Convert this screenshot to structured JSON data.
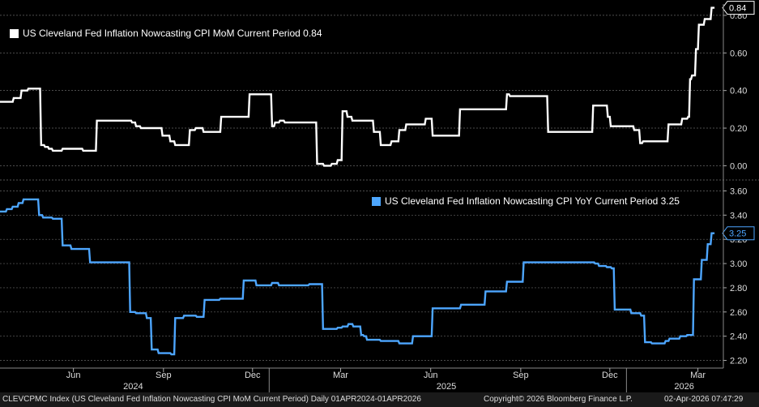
{
  "chart_data": [
    {
      "type": "line",
      "legend": "US Cleveland Fed Inflation Nowcasting CPI MoM Current Period 0.84",
      "current_value": "0.84",
      "color": "#ffffff",
      "ylim": [
        -0.05,
        0.86
      ],
      "yticks": [
        "0.00",
        "0.20",
        "0.40",
        "0.60",
        "0.80"
      ],
      "ytick_values": [
        0.0,
        0.2,
        0.4,
        0.6,
        0.8
      ],
      "grid": true,
      "legend_position": "top-left",
      "series": [
        {
          "x": [
            "2024-04-01",
            "2024-04-14",
            "2024-04-15",
            "2024-04-22",
            "2024-04-23",
            "2024-04-29",
            "2024-04-30",
            "2024-05-12",
            "2024-05-13",
            "2024-05-16",
            "2024-05-17",
            "2024-05-20",
            "2024-05-21",
            "2024-05-24",
            "2024-05-25",
            "2024-06-03",
            "2024-06-04",
            "2024-06-24",
            "2024-06-25",
            "2024-07-08",
            "2024-07-09",
            "2024-07-17",
            "2024-07-18",
            "2024-08-13",
            "2024-08-14",
            "2024-08-17",
            "2024-08-18",
            "2024-08-22",
            "2024-08-23",
            "2024-08-29",
            "2024-08-30",
            "2024-09-13",
            "2024-09-14",
            "2024-09-21",
            "2024-09-22",
            "2024-09-26",
            "2024-09-27",
            "2024-10-04",
            "2024-10-05",
            "2024-10-11",
            "2024-10-12",
            "2024-10-17",
            "2024-10-18",
            "2024-10-25",
            "2024-10-26",
            "2024-11-12",
            "2024-11-13",
            "2024-12-11",
            "2024-12-12",
            "2024-12-18",
            "2024-12-19",
            "2025-01-03",
            "2025-01-04",
            "2025-01-06",
            "2025-01-07",
            "2025-01-11",
            "2025-01-12",
            "2025-01-16",
            "2025-01-17",
            "2025-02-11",
            "2025-02-12",
            "2025-02-18",
            "2025-02-19",
            "2025-02-25",
            "2025-02-26",
            "2025-03-05",
            "2025-03-06",
            "2025-03-11",
            "2025-03-12",
            "2025-03-16",
            "2025-03-17",
            "2025-03-21",
            "2025-03-22",
            "2025-03-26",
            "2025-03-27",
            "2025-04-11",
            "2025-04-12",
            "2025-04-17",
            "2025-04-18",
            "2025-04-24",
            "2025-04-25",
            "2025-05-05",
            "2025-05-06",
            "2025-05-13",
            "2025-05-14",
            "2025-05-20",
            "2025-05-21",
            "2025-06-09",
            "2025-06-10",
            "2025-06-16",
            "2025-06-17",
            "2025-07-14",
            "2025-07-15",
            "2025-08-09",
            "2025-08-10",
            "2025-08-31",
            "2025-09-01",
            "2025-09-03",
            "2025-09-04",
            "2025-10-02",
            "2025-10-03",
            "2025-10-12",
            "2025-10-13",
            "2025-11-12",
            "2025-11-13",
            "2025-11-27",
            "2025-11-28",
            "2025-12-08",
            "2025-12-09",
            "2025-12-12",
            "2025-12-13",
            "2025-12-15",
            "2025-12-16",
            "2026-01-08",
            "2026-01-09",
            "2026-01-14",
            "2026-01-15",
            "2026-01-17",
            "2026-01-18",
            "2026-02-06",
            "2026-02-07",
            "2026-02-12",
            "2026-02-13",
            "2026-02-26",
            "2026-02-27",
            "2026-03-04",
            "2026-03-05",
            "2026-03-06",
            "2026-03-07",
            "2026-03-08",
            "2026-03-09",
            "2026-03-12",
            "2026-03-13",
            "2026-03-15",
            "2026-03-16",
            "2026-03-21",
            "2026-03-22",
            "2026-03-28",
            "2026-03-29",
            "2026-04-01"
          ],
          "values": [
            0.34,
            0.34,
            0.36,
            0.36,
            0.4,
            0.4,
            0.41,
            0.41,
            0.11,
            0.11,
            0.1,
            0.1,
            0.09,
            0.09,
            0.08,
            0.08,
            0.09,
            0.09,
            0.08,
            0.08,
            0.24,
            0.24,
            0.24,
            0.24,
            0.23,
            0.23,
            0.21,
            0.21,
            0.2,
            0.2,
            0.2,
            0.2,
            0.16,
            0.16,
            0.13,
            0.13,
            0.11,
            0.11,
            0.11,
            0.11,
            0.19,
            0.19,
            0.2,
            0.2,
            0.18,
            0.18,
            0.26,
            0.26,
            0.38,
            0.38,
            0.38,
            0.38,
            0.21,
            0.21,
            0.23,
            0.23,
            0.24,
            0.24,
            0.23,
            0.23,
            0.23,
            0.23,
            0.01,
            0.01,
            0.0,
            0.0,
            0.01,
            0.01,
            0.03,
            0.03,
            0.29,
            0.29,
            0.26,
            0.26,
            0.24,
            0.24,
            0.24,
            0.24,
            0.18,
            0.18,
            0.11,
            0.11,
            0.13,
            0.13,
            0.19,
            0.19,
            0.22,
            0.22,
            0.25,
            0.25,
            0.16,
            0.16,
            0.3,
            0.3,
            0.3,
            0.3,
            0.38,
            0.38,
            0.37,
            0.37,
            0.37,
            0.37,
            0.18,
            0.18,
            0.18,
            0.18,
            0.32,
            0.32,
            0.32,
            0.32,
            0.26,
            0.26,
            0.21,
            0.21,
            0.19,
            0.19,
            0.12,
            0.12,
            0.13,
            0.13,
            0.13,
            0.13,
            0.22,
            0.22,
            0.25,
            0.25,
            0.26,
            0.26,
            0.46,
            0.46,
            0.48,
            0.48,
            0.62,
            0.62,
            0.75,
            0.75,
            0.78,
            0.78,
            0.84,
            0.84
          ]
        }
      ]
    },
    {
      "type": "line",
      "legend": "US Cleveland Fed Inflation Nowcasting CPI YoY Current Period 3.25",
      "current_value": "3.25",
      "color": "#4da6ff",
      "ylim": [
        2.15,
        3.65
      ],
      "yticks": [
        "2.20",
        "2.40",
        "2.60",
        "2.80",
        "3.00",
        "3.20",
        "3.40",
        "3.60"
      ],
      "ytick_values": [
        2.2,
        2.4,
        2.6,
        2.8,
        3.0,
        3.2,
        3.4,
        3.6
      ],
      "grid": true,
      "legend_position": "top-right",
      "series": [
        {
          "x": [
            "2024-04-01",
            "2024-04-07",
            "2024-04-08",
            "2024-04-13",
            "2024-04-14",
            "2024-04-19",
            "2024-04-20",
            "2024-04-24",
            "2024-04-25",
            "2024-05-10",
            "2024-05-11",
            "2024-05-14",
            "2024-05-15",
            "2024-05-24",
            "2024-05-25",
            "2024-06-03",
            "2024-06-04",
            "2024-06-12",
            "2024-06-13",
            "2024-07-01",
            "2024-07-02",
            "2024-08-11",
            "2024-08-12",
            "2024-08-17",
            "2024-08-18",
            "2024-08-28",
            "2024-08-29",
            "2024-09-02",
            "2024-09-03",
            "2024-09-09",
            "2024-09-10",
            "2024-09-22",
            "2024-09-23",
            "2024-09-26",
            "2024-09-27",
            "2024-10-05",
            "2024-10-06",
            "2024-10-18",
            "2024-10-19",
            "2024-10-26",
            "2024-10-27",
            "2024-11-11",
            "2024-11-12",
            "2024-12-05",
            "2024-12-06",
            "2024-12-11",
            "2024-12-12",
            "2024-12-18",
            "2024-12-19",
            "2025-01-03",
            "2025-01-04",
            "2025-01-10",
            "2025-01-11",
            "2025-02-10",
            "2025-02-11",
            "2025-02-19",
            "2025-02-20",
            "2025-02-24",
            "2025-02-25",
            "2025-03-11",
            "2025-03-12",
            "2025-03-16",
            "2025-03-17",
            "2025-03-22",
            "2025-03-23",
            "2025-03-27",
            "2025-03-28",
            "2025-04-04",
            "2025-04-05",
            "2025-04-07",
            "2025-04-08",
            "2025-04-10",
            "2025-04-11",
            "2025-04-24",
            "2025-04-25",
            "2025-05-13",
            "2025-05-14",
            "2025-05-17",
            "2025-05-18",
            "2025-05-27",
            "2025-05-28",
            "2025-06-10",
            "2025-06-11",
            "2025-06-16",
            "2025-06-17",
            "2025-07-15",
            "2025-07-16",
            "2025-08-09",
            "2025-08-10",
            "2025-08-31",
            "2025-09-01",
            "2025-09-04",
            "2025-09-05",
            "2025-09-17",
            "2025-09-18",
            "2025-11-29",
            "2025-11-30",
            "2025-12-03",
            "2025-12-04",
            "2025-12-11",
            "2025-12-12",
            "2025-12-16",
            "2025-12-17",
            "2025-12-19",
            "2025-12-20",
            "2026-01-05",
            "2026-01-06",
            "2026-01-15",
            "2026-01-16",
            "2026-01-19",
            "2026-01-20",
            "2026-01-26",
            "2026-01-27",
            "2026-02-09",
            "2026-02-10",
            "2026-02-13",
            "2026-02-14",
            "2026-02-24",
            "2026-02-25",
            "2026-03-03",
            "2026-03-04",
            "2026-03-10",
            "2026-03-11",
            "2026-03-18",
            "2026-03-19",
            "2026-03-24",
            "2026-03-25",
            "2026-03-28",
            "2026-03-29",
            "2026-04-01"
          ],
          "values": [
            3.43,
            3.43,
            3.45,
            3.45,
            3.47,
            3.47,
            3.5,
            3.5,
            3.53,
            3.53,
            3.4,
            3.4,
            3.38,
            3.38,
            3.37,
            3.37,
            3.15,
            3.15,
            3.12,
            3.12,
            3.01,
            3.01,
            2.6,
            2.6,
            2.59,
            2.59,
            2.55,
            2.55,
            2.29,
            2.29,
            2.26,
            2.26,
            2.25,
            2.25,
            2.55,
            2.55,
            2.57,
            2.57,
            2.56,
            2.56,
            2.7,
            2.7,
            2.71,
            2.71,
            2.86,
            2.86,
            2.86,
            2.86,
            2.82,
            2.82,
            2.84,
            2.84,
            2.82,
            2.82,
            2.83,
            2.83,
            2.83,
            2.83,
            2.46,
            2.46,
            2.47,
            2.47,
            2.48,
            2.48,
            2.5,
            2.5,
            2.48,
            2.48,
            2.41,
            2.41,
            2.4,
            2.4,
            2.37,
            2.37,
            2.36,
            2.36,
            2.34,
            2.34,
            2.34,
            2.34,
            2.4,
            2.4,
            2.4,
            2.4,
            2.63,
            2.63,
            2.66,
            2.66,
            2.77,
            2.77,
            2.85,
            2.85,
            2.85,
            2.85,
            3.01,
            3.01,
            3.0,
            3.0,
            2.98,
            2.98,
            2.97,
            2.97,
            2.96,
            2.96,
            2.62,
            2.62,
            2.59,
            2.59,
            2.57,
            2.57,
            2.35,
            2.35,
            2.34,
            2.34,
            2.36,
            2.36,
            2.38,
            2.38,
            2.4,
            2.4,
            2.41,
            2.41,
            2.87,
            2.87,
            3.03,
            3.03,
            3.16,
            3.16,
            3.25,
            3.25
          ]
        }
      ]
    }
  ],
  "x_axis": {
    "month_ticks": [
      "Jun",
      "Sep",
      "Dec",
      "Mar",
      "Jun",
      "Sep",
      "Dec",
      "Mar"
    ],
    "month_tick_dates": [
      "2024-06-15",
      "2024-09-15",
      "2024-12-15",
      "2025-03-15",
      "2025-06-15",
      "2025-09-15",
      "2025-12-15",
      "2026-03-15"
    ],
    "year_labels": [
      "2024",
      "2025",
      "2026"
    ],
    "year_label_dates": [
      "2024-08-15",
      "2025-07-01",
      "2026-03-01"
    ],
    "year_boundaries": [
      "2025-01-01",
      "2026-01-01"
    ],
    "range": [
      "2024-04-01",
      "2026-04-10"
    ]
  },
  "footer": {
    "left": "CLEVCPMC Index (US Cleveland Fed Inflation Nowcasting CPI MoM Current Period) Daily 01APR2024-01APR2026",
    "copyright": "Copyright© 2026 Bloomberg Finance L.P.",
    "timestamp": "02-Apr-2026 07:47:29"
  }
}
